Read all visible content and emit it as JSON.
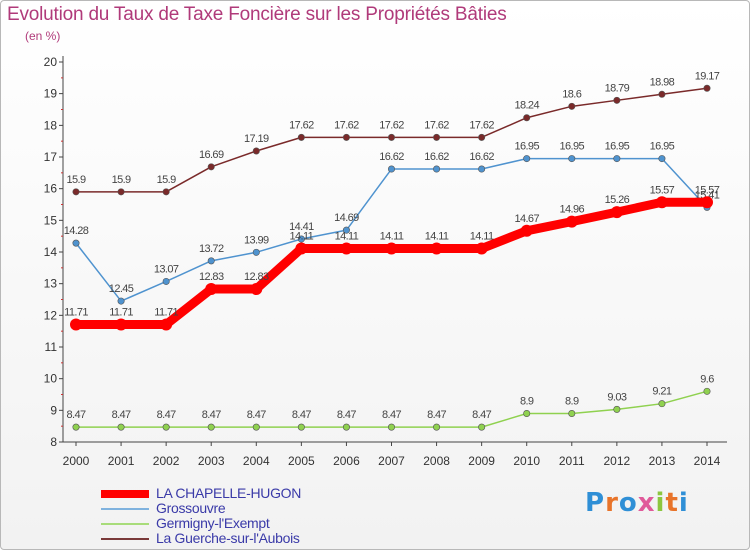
{
  "title": "Evolution du Taux de Taxe Foncière sur les Propriétés Bâties",
  "unit": "(en %)",
  "brand": "Proxiti",
  "chart_data": {
    "type": "line",
    "title": "Evolution du Taux de Taxe Foncière sur les Propriétés Bâties",
    "ylabel": "(en %)",
    "xlabel": "",
    "ylim": [
      8,
      20
    ],
    "yticks": [
      8,
      9,
      10,
      11,
      12,
      13,
      14,
      15,
      16,
      17,
      18,
      19,
      20
    ],
    "x": [
      "2000",
      "2001",
      "2002",
      "2003",
      "2004",
      "2005",
      "2006",
      "2007",
      "2008",
      "2009",
      "2010",
      "2011",
      "2012",
      "2013",
      "2014"
    ],
    "grid": false,
    "legend": "bottom-left",
    "series": [
      {
        "name": "LA CHAPELLE-HUGON",
        "color": "#ff0000",
        "highlight": true,
        "values": [
          11.71,
          11.71,
          11.71,
          12.83,
          12.83,
          14.11,
          14.11,
          14.11,
          14.11,
          14.11,
          14.67,
          14.96,
          15.26,
          15.57,
          15.57
        ],
        "labels": [
          "11.71",
          "11.71",
          "11.71",
          "12.83",
          "12.83",
          "14.11",
          "14.11",
          "14.11",
          "14.11",
          "14.11",
          "14.67",
          "14.96",
          "15.26",
          "15.57",
          "15.57"
        ]
      },
      {
        "name": "Grossouvre",
        "color": "#4f93cf",
        "highlight": false,
        "values": [
          14.28,
          12.45,
          13.07,
          13.72,
          13.99,
          14.41,
          14.69,
          16.62,
          16.62,
          16.62,
          16.95,
          16.95,
          16.95,
          16.95,
          15.41
        ],
        "labels": [
          "14.28",
          "12.45",
          "13.07",
          "13.72",
          "13.99",
          "14.41",
          "14.69",
          "16.62",
          "16.62",
          "16.62",
          "16.95",
          "16.95",
          "16.95",
          "16.95",
          "15.41"
        ]
      },
      {
        "name": "Germigny-l'Exempt",
        "color": "#8fd14f",
        "highlight": false,
        "values": [
          8.47,
          8.47,
          8.47,
          8.47,
          8.47,
          8.47,
          8.47,
          8.47,
          8.47,
          8.47,
          8.9,
          8.9,
          9.03,
          9.21,
          9.6
        ],
        "labels": [
          "8.47",
          "8.47",
          "8.47",
          "8.47",
          "8.47",
          "8.47",
          "8.47",
          "8.47",
          "8.47",
          "8.47",
          "8.9",
          "8.9",
          "9.03",
          "9.21",
          "9.6"
        ]
      },
      {
        "name": "La Guerche-sur-l'Aubois",
        "color": "#7a2a2a",
        "highlight": false,
        "values": [
          15.9,
          15.9,
          15.9,
          16.69,
          17.19,
          17.62,
          17.62,
          17.62,
          17.62,
          17.62,
          18.24,
          18.6,
          18.79,
          18.98,
          19.17
        ],
        "labels": [
          "15.9",
          "15.9",
          "15.9",
          "16.69",
          "17.19",
          "17.62",
          "17.62",
          "17.62",
          "17.62",
          "17.62",
          "18.24",
          "18.6",
          "18.79",
          "18.98",
          "19.17"
        ]
      }
    ]
  },
  "legend_items": [
    {
      "label": "LA CHAPELLE-HUGON",
      "color": "#ff0000",
      "text_color": "#3a3aa8"
    },
    {
      "label": "Grossouvre",
      "color": "#7fb2de",
      "text_color": "#3a3aa8"
    },
    {
      "label": "Germigny-l'Exempt",
      "color": "#a8dc7a",
      "text_color": "#3a3aa8"
    },
    {
      "label": "La Guerche-sur-l'Aubois",
      "color": "#7a3a3a",
      "text_color": "#3a3aa8"
    }
  ]
}
